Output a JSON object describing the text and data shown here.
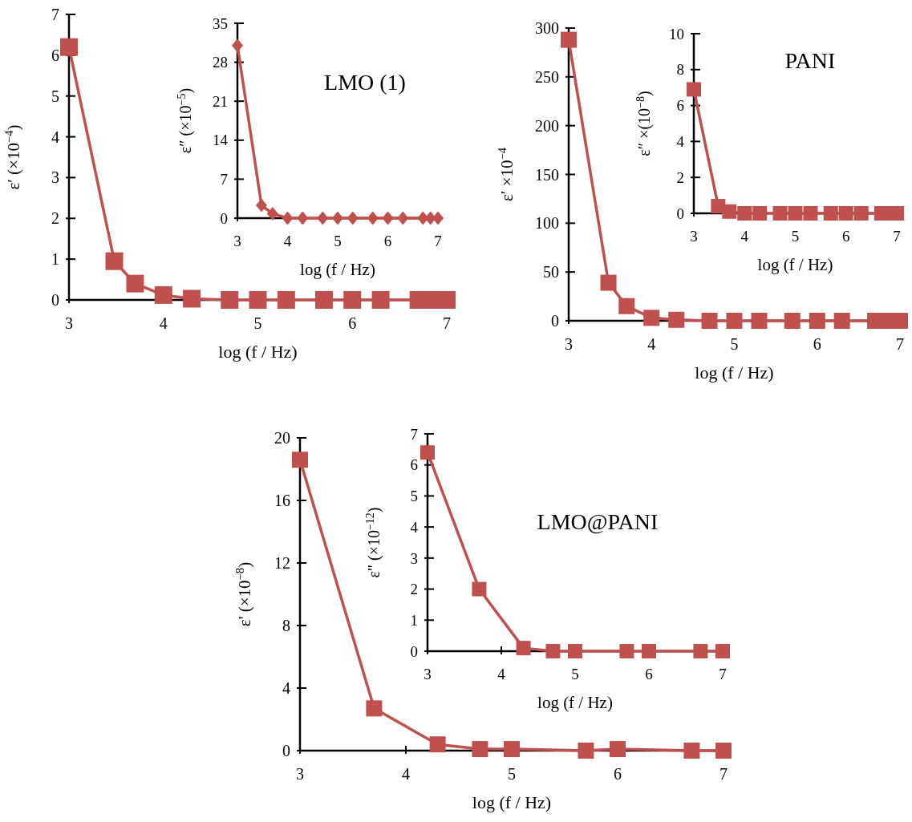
{
  "chart_data": [
    {
      "type": "line",
      "xlabel": "log (f / Hz)",
      "ylabel": "ε′ (×10$^{−4}$)",
      "annotations": [
        "LMO (1)"
      ],
      "x": [
        3,
        3.48,
        3.7,
        4,
        4.3,
        4.7,
        5,
        5.3,
        5.7,
        6,
        6.3,
        6.7,
        6.85,
        7
      ],
      "series": [
        {
          "color": "#c0504d",
          "values": [
            6.2,
            0.95,
            0.4,
            0.12,
            0.03,
            0,
            0,
            0,
            0,
            0,
            0,
            0,
            0,
            0
          ]
        }
      ],
      "xlim": [
        3,
        7
      ],
      "xticks": [
        3,
        4,
        5,
        6,
        7
      ],
      "ylim": [
        0,
        7
      ],
      "yticks": [
        0,
        1,
        2,
        3,
        4,
        5,
        6,
        7
      ],
      "marker": "square",
      "grid": false
    },
    {
      "type": "line",
      "xlabel": "log (f / Hz)",
      "ylabel": "ε″ (×10$^{−5}$)",
      "x": [
        3,
        3.48,
        3.7,
        4,
        4.3,
        4.7,
        5,
        5.3,
        5.7,
        6,
        6.3,
        6.7,
        6.85,
        7
      ],
      "series": [
        {
          "color": "#c0504d",
          "values": [
            31,
            2.3,
            0.8,
            0,
            0,
            0,
            0,
            0,
            0,
            0,
            0,
            0,
            0,
            0
          ]
        }
      ],
      "xlim": [
        3,
        7
      ],
      "xticks": [
        3,
        4,
        5,
        6,
        7
      ],
      "ylim": [
        0,
        35
      ],
      "yticks": [
        0,
        7,
        14,
        21,
        28,
        35
      ],
      "marker": "diamond",
      "grid": false
    },
    {
      "type": "line",
      "xlabel": "log (f / Hz)",
      "ylabel": "ε′ ×10$^{−4}$",
      "annotations": [
        "PANI"
      ],
      "x": [
        3,
        3.48,
        3.7,
        4,
        4.3,
        4.7,
        5,
        5.3,
        5.7,
        6,
        6.3,
        6.7,
        6.85,
        7
      ],
      "series": [
        {
          "color": "#c0504d",
          "values": [
            288,
            39,
            15,
            3,
            1,
            0,
            0,
            0,
            0,
            0,
            0,
            0,
            0,
            0
          ]
        }
      ],
      "xlim": [
        3,
        7
      ],
      "xticks": [
        3,
        4,
        5,
        6,
        7
      ],
      "ylim": [
        0,
        300
      ],
      "yticks": [
        0,
        50,
        100,
        150,
        200,
        250,
        300
      ],
      "marker": "square",
      "grid": false
    },
    {
      "type": "line",
      "xlabel": "log (f / Hz)",
      "ylabel": "ε″ ×(10$^{−8}$)",
      "x": [
        3,
        3.48,
        3.7,
        4,
        4.3,
        4.7,
        5,
        5.3,
        5.7,
        6,
        6.3,
        6.7,
        6.85,
        7
      ],
      "series": [
        {
          "color": "#c0504d",
          "values": [
            6.9,
            0.4,
            0.1,
            0,
            0,
            0,
            0,
            0,
            0,
            0,
            0,
            0,
            0,
            0
          ]
        }
      ],
      "xlim": [
        3,
        7
      ],
      "xticks": [
        3,
        4,
        5,
        6,
        7
      ],
      "ylim": [
        0,
        10
      ],
      "yticks": [
        0,
        2,
        4,
        6,
        8,
        10
      ],
      "marker": "square",
      "grid": false
    },
    {
      "type": "line",
      "xlabel": "log (f / Hz)",
      "ylabel": "ε' (×10$^{−8}$)",
      "annotations": [
        "LMO@PANI"
      ],
      "x": [
        3,
        3.7,
        4.3,
        4.7,
        5,
        5.7,
        6,
        6.7,
        7
      ],
      "series": [
        {
          "color": "#c0504d",
          "values": [
            18.6,
            2.7,
            0.4,
            0.1,
            0.1,
            0,
            0.1,
            0,
            0
          ]
        }
      ],
      "xlim": [
        3,
        7
      ],
      "xticks": [
        3,
        4,
        5,
        6,
        7
      ],
      "ylim": [
        0,
        20
      ],
      "yticks": [
        0,
        4,
        8,
        12,
        16,
        20
      ],
      "marker": "square",
      "grid": false
    },
    {
      "type": "line",
      "xlabel": "log (f / Hz)",
      "ylabel": "ε\" (×10$^{−12}$)",
      "x": [
        3,
        3.7,
        4.3,
        4.7,
        5,
        5.7,
        6,
        6.7,
        7
      ],
      "series": [
        {
          "color": "#c0504d",
          "values": [
            6.4,
            2.0,
            0.1,
            0,
            0,
            0,
            0,
            0,
            0
          ]
        }
      ],
      "xlim": [
        3,
        7
      ],
      "xticks": [
        3,
        4,
        5,
        6,
        7
      ],
      "ylim": [
        0,
        7
      ],
      "yticks": [
        0,
        1,
        2,
        3,
        4,
        5,
        6,
        7
      ],
      "marker": "square",
      "grid": false
    }
  ]
}
